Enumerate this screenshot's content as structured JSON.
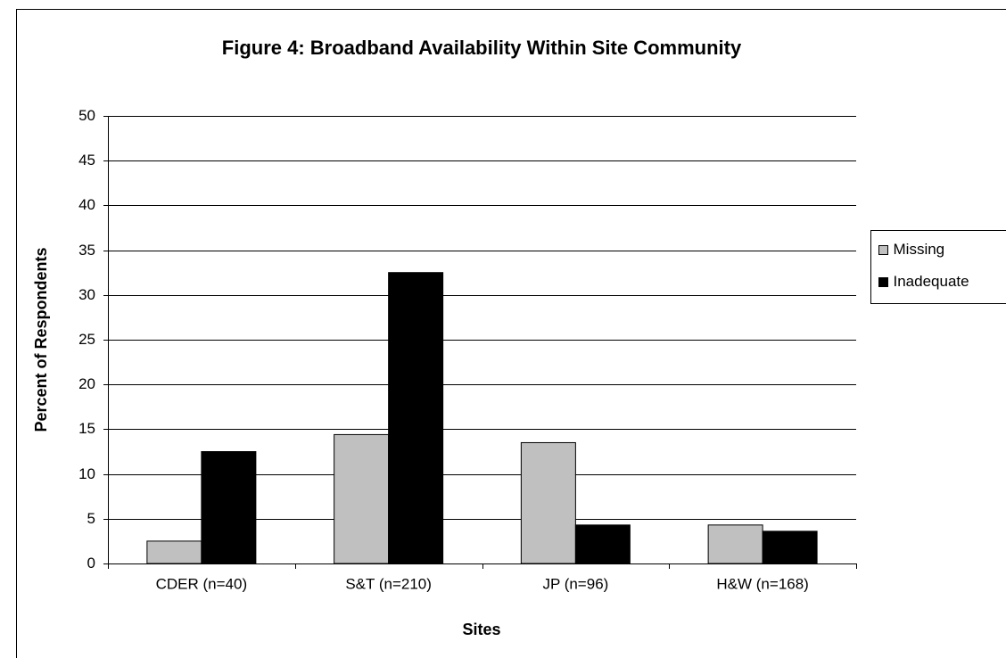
{
  "chart_data": {
    "type": "bar",
    "title": "Figure 4: Broadband Availability Within Site Community",
    "x_label": "Sites",
    "y_label": "Percent of Respondents",
    "categories": [
      "CDER (n=40)",
      "S&T (n=210)",
      "JP (n=96)",
      "H&W (n=168)"
    ],
    "series": [
      {
        "name": "Missing",
        "color": "#c0c0c0",
        "values": [
          2.5,
          14.4,
          13.5,
          4.3
        ]
      },
      {
        "name": "Inadequate",
        "color": "#000000",
        "values": [
          12.5,
          32.5,
          4.3,
          3.6
        ]
      }
    ],
    "ylim": [
      0,
      50
    ],
    "yticks": [
      0,
      5,
      10,
      15,
      20,
      25,
      30,
      35,
      40,
      45,
      50
    ],
    "grid": true,
    "legend": "right"
  }
}
